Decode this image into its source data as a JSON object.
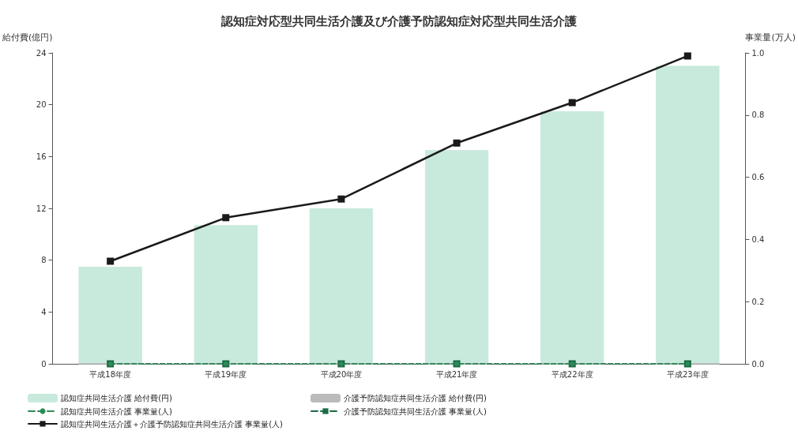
{
  "chart_data": {
    "type": "bar",
    "title": "認知症対応型共同生活介護及び介護予防認知症対応型共同生活介護",
    "ylabel": "給付費(億円)",
    "y2label": "事業量(万人)",
    "categories": [
      "平成18年度",
      "平成19年度",
      "平成20年度",
      "平成21年度",
      "平成22年度",
      "平成23年度"
    ],
    "series": [
      {
        "name": "認知症共同生活介護 給付費(円)",
        "color": "#c8eadc",
        "values": [
          7.5,
          10.7,
          12,
          16.5,
          19.5,
          23
        ]
      },
      {
        "name": "介護予防認知症共同生活介護 給付費(円)",
        "color": "#bbbbbb",
        "values": [
          0,
          0,
          0,
          0,
          0,
          0
        ]
      },
      {
        "name": "認知症共同生活介護 事業量(人)",
        "type": "line",
        "axis": "y2",
        "color": "#2e8b57",
        "line_style": "dashed",
        "marker": "circle",
        "values": [
          0,
          0,
          0,
          0,
          0,
          0
        ]
      },
      {
        "name": "介護予防認知症共同生活介護 事業量(人)",
        "type": "line",
        "axis": "y2",
        "color": "#1a6b45",
        "line_style": "dashed",
        "marker": "square",
        "values": [
          0,
          0,
          0,
          0,
          0,
          0
        ]
      },
      {
        "name": "認知症共同生活介護＋介護予防認知症共同生活介護 事業量(人)",
        "type": "line",
        "axis": "y2",
        "color": "#1a1a1a",
        "line_style": "solid",
        "marker": "square",
        "values": [
          0.33,
          0.47,
          0.53,
          0.71,
          0.84,
          0.99
        ]
      }
    ],
    "ylim": [
      0,
      24
    ],
    "yticks": [
      0,
      4,
      8,
      12,
      16,
      20,
      24
    ],
    "y2lim": [
      0,
      1
    ],
    "y2ticks": [
      {
        "value": 0,
        "label": "0.0"
      },
      {
        "value": 0.2,
        "label": "0.2"
      },
      {
        "value": 0.4,
        "label": "0.4"
      },
      {
        "value": 0.6,
        "label": "0.6"
      },
      {
        "value": 0.8,
        "label": "0.8"
      },
      {
        "value": 1,
        "label": "1.0"
      }
    ],
    "grid": false,
    "legend": "bottom"
  }
}
